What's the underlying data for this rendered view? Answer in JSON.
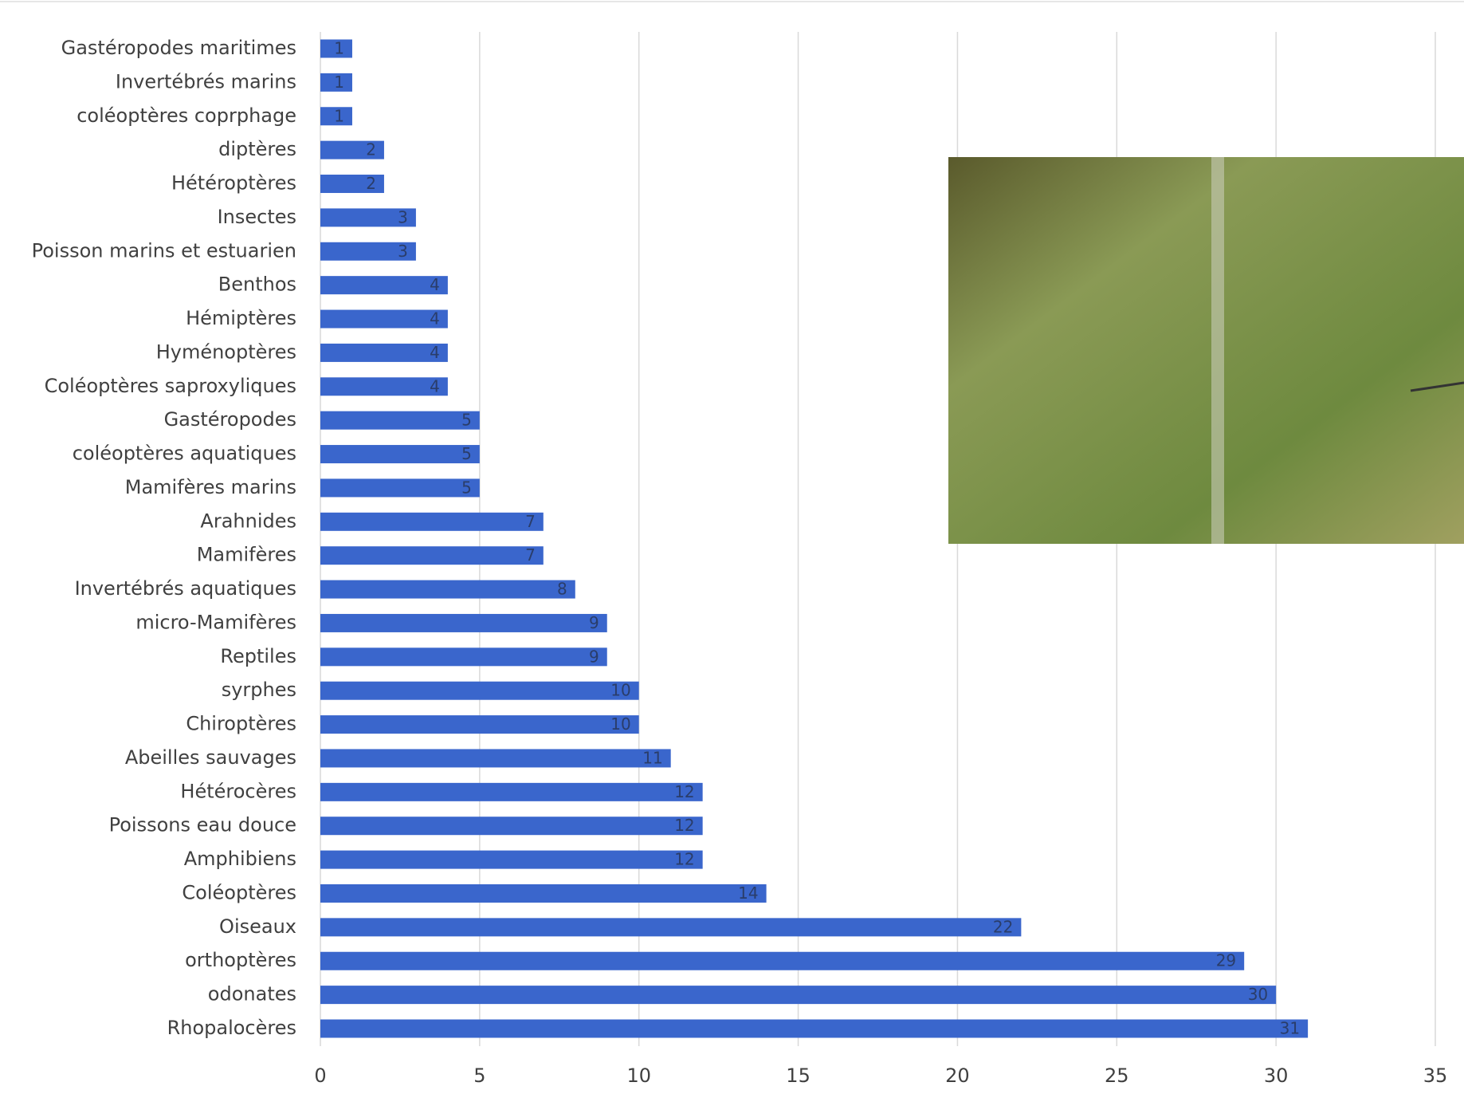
{
  "chart_data": {
    "type": "barh",
    "categories": [
      "Gastéropodes maritimes",
      "Invertébrés marins",
      "coléoptères coprphage",
      "diptères",
      "Hétéroptères",
      "Insectes",
      "Poisson marins et estuarien",
      "Benthos",
      "Hémiptères",
      "Hyménoptères",
      "Coléoptères saproxyliques",
      "Gastéropodes",
      "coléoptères aquatiques",
      "Mamifères marins",
      "Arahnides",
      "Mamifères",
      "Invertébrés aquatiques",
      "micro-Mamifères",
      "Reptiles",
      "syrphes",
      "Chiroptères",
      "Abeilles sauvages",
      "Hétérocères",
      "Poissons eau douce",
      "Amphibiens",
      "Coléoptères",
      "Oiseaux",
      "orthoptères",
      "odonates",
      "Rhopalocères"
    ],
    "values": [
      1,
      1,
      1,
      2,
      2,
      3,
      3,
      4,
      4,
      4,
      4,
      5,
      5,
      5,
      7,
      7,
      8,
      9,
      9,
      10,
      10,
      11,
      12,
      12,
      12,
      14,
      22,
      29,
      30,
      31
    ],
    "color": "#3a66cc",
    "xlim": [
      0,
      35
    ],
    "xticks": [
      0,
      5,
      10,
      15,
      20,
      25,
      30,
      35
    ],
    "grid": true
  }
}
